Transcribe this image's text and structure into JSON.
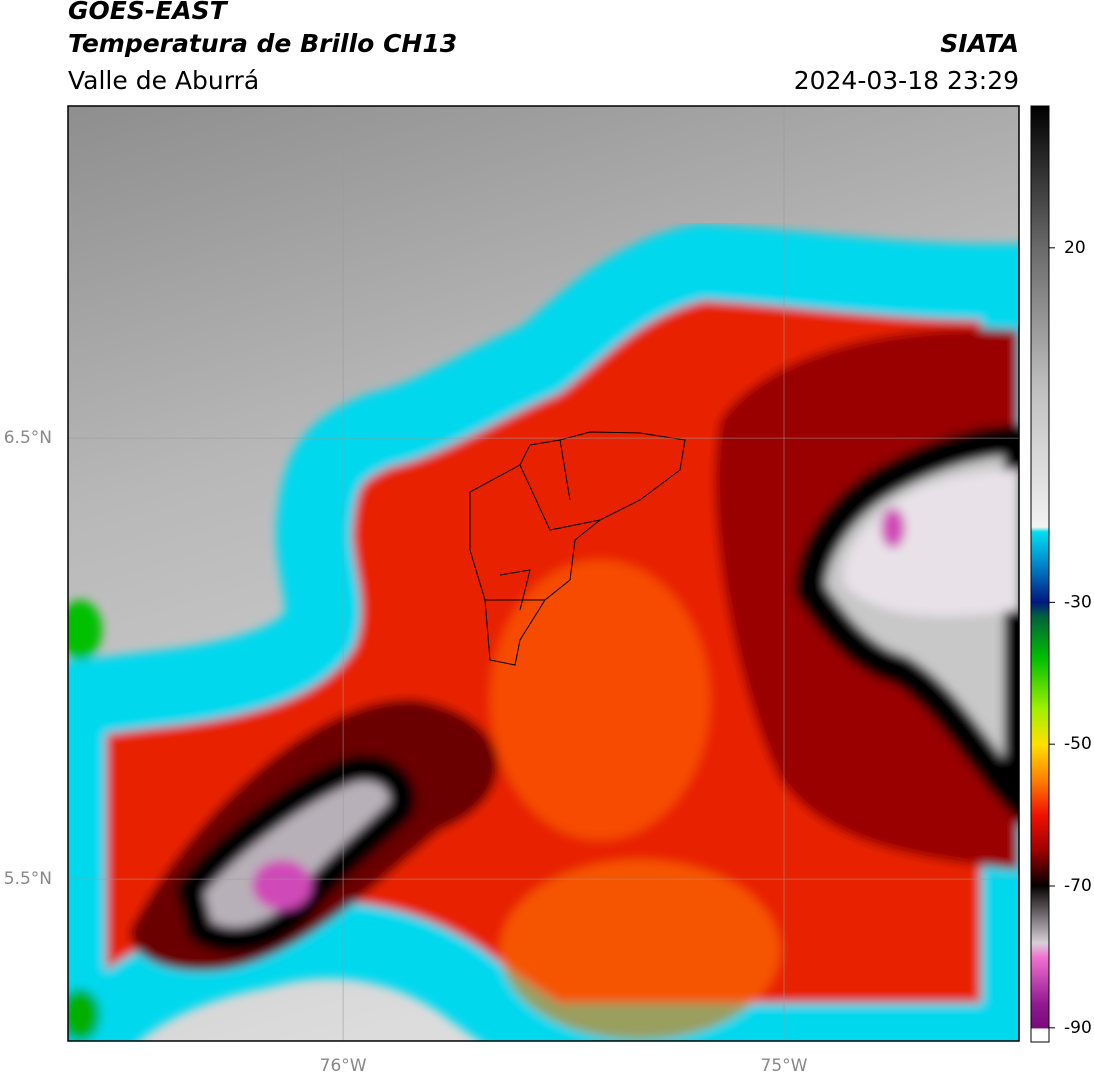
{
  "header": {
    "title": "GOES-EAST",
    "subtitle": "Temperatura de Brillo CH13",
    "source": "SIATA",
    "region": "Valle de Aburrá",
    "datetime": "2024-03-18 23:29"
  },
  "map": {
    "lon_range": [
      -76.624,
      -74.467
    ],
    "lat_range": [
      7.253,
      5.133
    ],
    "lon_ticks": [
      {
        "value": -76,
        "label": "76°W"
      },
      {
        "value": -75,
        "label": "75°W"
      }
    ],
    "lat_ticks": [
      {
        "value": 6.5,
        "label": "6.5°N"
      },
      {
        "value": 5.5,
        "label": "5.5°N"
      }
    ],
    "grid": true
  },
  "colorbar": {
    "range": [
      -92,
      40
    ],
    "ticks": [
      20,
      -30,
      -50,
      -70,
      -90
    ]
  }
}
